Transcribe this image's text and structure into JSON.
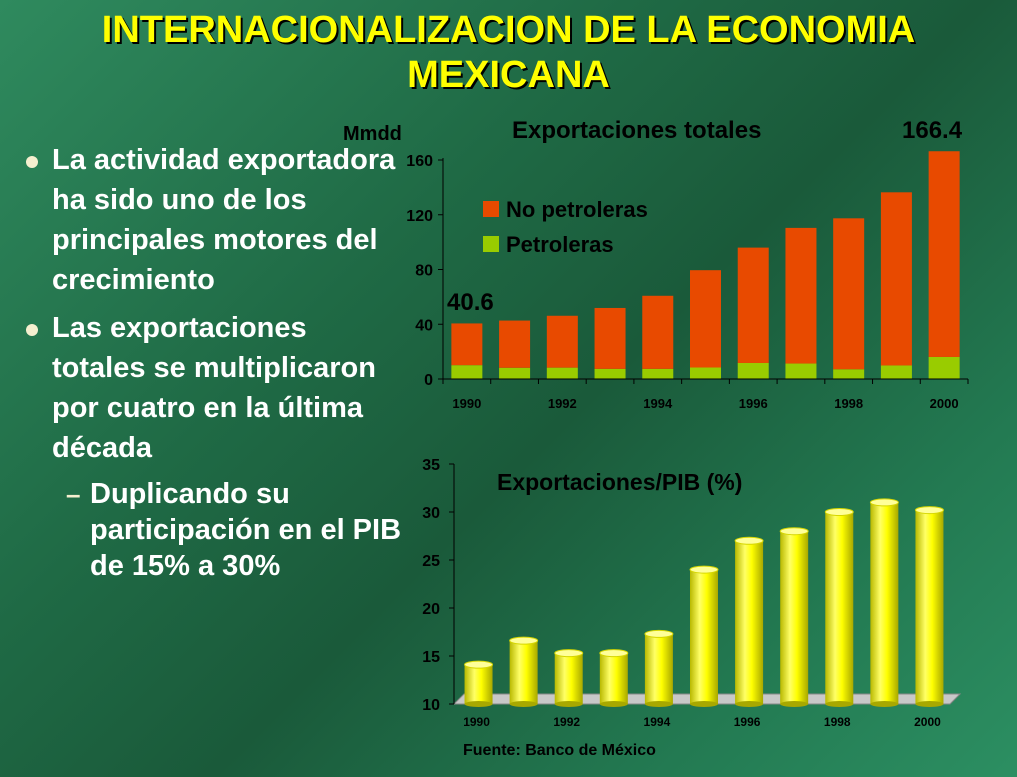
{
  "title": "INTERNACIONALIZACION DE LA ECONOMIA MEXICANA",
  "bullets": [
    {
      "text": "La actividad exportadora ha sido uno de los principales motores del crecimiento"
    },
    {
      "text": "Las exportaciones totales se multiplicaron por cuatro en la última década"
    }
  ],
  "sub_bullet": "Duplicando su participación en el PIB de 15% a 30%",
  "source": "Fuente: Banco de México",
  "colors": {
    "title": "#ffff00",
    "no_petroleras": "#e84a00",
    "petroleras": "#99cc00",
    "pib_bars": "#ffff00"
  },
  "chart_data": [
    {
      "type": "bar",
      "stacked": true,
      "title": "Exportaciones totales",
      "ylabel": "Mmdd",
      "ylim": [
        0,
        160
      ],
      "yticks": [
        "0",
        "40",
        "80",
        "120",
        "160"
      ],
      "categories": [
        "1990",
        "1991",
        "1992",
        "1993",
        "1994",
        "1995",
        "1996",
        "1997",
        "1998",
        "1999",
        "2000"
      ],
      "xtick_labels": [
        "1990",
        "1992",
        "1994",
        "1996",
        "1998",
        "2000"
      ],
      "series": [
        {
          "name": "Petroleras",
          "values": [
            10.1,
            8.2,
            8.3,
            7.4,
            7.4,
            8.4,
            11.7,
            11.3,
            7.1,
            9.9,
            16.1
          ]
        },
        {
          "name": "No petroleras",
          "values": [
            30.5,
            34.5,
            37.9,
            44.5,
            53.4,
            71.1,
            84.3,
            99.1,
            110.3,
            126.5,
            150.3
          ]
        }
      ],
      "data_labels": {
        "first": "40.6",
        "last": "166.4"
      },
      "legend": [
        "No petroleras",
        "Petroleras"
      ],
      "legend_position": "top-left"
    },
    {
      "type": "bar",
      "title": "Exportaciones/PIB (%)",
      "ylim": [
        10,
        35
      ],
      "yticks": [
        "10",
        "15",
        "20",
        "25",
        "30",
        "35"
      ],
      "categories": [
        "1990",
        "1991",
        "1992",
        "1993",
        "1994",
        "1995",
        "1996",
        "1997",
        "1998",
        "1999",
        "2000"
      ],
      "xtick_labels": [
        "1990",
        "1992",
        "1994",
        "1996",
        "1998",
        "2000"
      ],
      "values": [
        14.1,
        16.6,
        15.3,
        15.3,
        17.3,
        24.0,
        27.0,
        28.0,
        30.0,
        31.0,
        30.2
      ]
    }
  ]
}
